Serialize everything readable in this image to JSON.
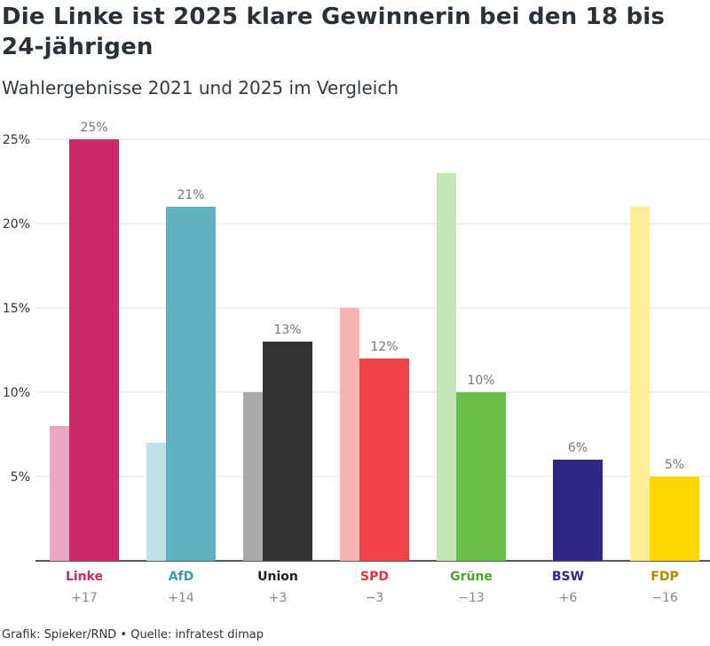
{
  "header": {
    "title": "Die Linke ist 2025 klare Gewinnerin bei den 18 bis 24-jährigen",
    "subtitle": "Wahlergebnisse 2021 und 2025 im Vergleich"
  },
  "footer": {
    "credit": "Grafik: Spieker/RND • Quelle: infratest dimap"
  },
  "chart_data": {
    "type": "bar",
    "categories": [
      "Linke",
      "AfD",
      "Union",
      "SPD",
      "Grüne",
      "BSW",
      "FDP"
    ],
    "series": [
      {
        "values": [
          8,
          7,
          10,
          15,
          23,
          null,
          21
        ]
      },
      {
        "values": [
          25,
          21,
          13,
          12,
          10,
          6,
          5
        ]
      }
    ],
    "value_labels": [
      "25%",
      "21%",
      "13%",
      "12%",
      "10%",
      "6%",
      "5%"
    ],
    "differences": [
      "+17",
      "+14",
      "+3",
      "−3",
      "−13",
      "+6",
      "−16"
    ],
    "y_ticks": [
      5,
      10,
      15,
      20,
      25
    ],
    "y_tick_labels": [
      "5%",
      "10%",
      "15%",
      "20%",
      "25%"
    ],
    "ylim": [
      0,
      25
    ],
    "grid": true,
    "colors": {
      "2021": [
        "#e8a6c2",
        "#bfe0e6",
        "#aaaaaa",
        "#f8b3b3",
        "#c6e5b5",
        "#b3b0d6",
        "#fdee94"
      ],
      "2025": [
        "#c92964",
        "#61b1c0",
        "#333333",
        "#ef4347",
        "#6abf4b",
        "#312783",
        "#fdd700"
      ],
      "label": [
        "#c92964",
        "#3f9aab",
        "#222222",
        "#e5343a",
        "#4fa22f",
        "#312783",
        "#a88d00"
      ]
    }
  }
}
